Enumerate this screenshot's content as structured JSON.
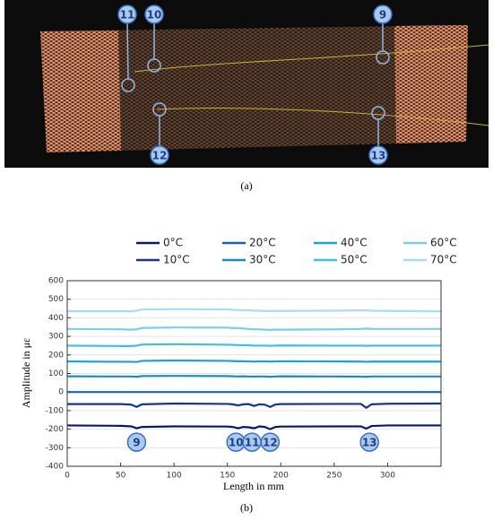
{
  "figure": {
    "panel_a_caption": "(a)",
    "panel_b_caption": "(b)",
    "photo_labels": [
      "11",
      "10",
      "9",
      "12",
      "13"
    ]
  },
  "chart_data": {
    "type": "line",
    "xlabel": "Length in mm",
    "ylabel": "Amplitude in με",
    "x": [
      0,
      50,
      60,
      65,
      70,
      100,
      150,
      155,
      160,
      165,
      170,
      175,
      180,
      185,
      190,
      195,
      200,
      250,
      275,
      280,
      285,
      300,
      350
    ],
    "xlim": [
      0,
      350
    ],
    "xticks": [
      0,
      50,
      100,
      150,
      200,
      250,
      300
    ],
    "ylim": [
      -400,
      600
    ],
    "yticks": [
      -400,
      -300,
      -200,
      -100,
      0,
      100,
      200,
      300,
      400,
      500,
      600
    ],
    "grid": true,
    "series": [
      {
        "name": "0°C",
        "color": "#0b1a66",
        "values": [
          -180,
          -182,
          -185,
          -195,
          -188,
          -185,
          -186,
          -188,
          -195,
          -188,
          -190,
          -195,
          -185,
          -188,
          -200,
          -188,
          -186,
          -185,
          -185,
          -197,
          -183,
          -180,
          -180
        ]
      },
      {
        "name": "10°C",
        "color": "#17358a",
        "values": [
          -65,
          -65,
          -68,
          -80,
          -66,
          -62,
          -64,
          -66,
          -72,
          -66,
          -65,
          -75,
          -66,
          -68,
          -80,
          -67,
          -65,
          -64,
          -64,
          -85,
          -66,
          -63,
          -62
        ]
      },
      {
        "name": "20°C",
        "color": "#1463b0",
        "values": [
          0,
          0,
          0,
          0,
          0,
          0,
          0,
          0,
          0,
          0,
          0,
          0,
          0,
          0,
          0,
          0,
          0,
          0,
          0,
          0,
          0,
          0,
          0
        ]
      },
      {
        "name": "30°C",
        "color": "#1a8bc6",
        "values": [
          85,
          84,
          84,
          82,
          86,
          87,
          86,
          85,
          84,
          85,
          84,
          83,
          84,
          84,
          82,
          84,
          85,
          84,
          83,
          82,
          84,
          84,
          84
        ]
      },
      {
        "name": "40°C",
        "color": "#1ba2d6",
        "values": [
          165,
          163,
          163,
          162,
          168,
          170,
          168,
          167,
          166,
          166,
          165,
          164,
          165,
          165,
          164,
          165,
          166,
          165,
          164,
          163,
          164,
          164,
          164
        ]
      },
      {
        "name": "50°C",
        "color": "#3cbfe0",
        "values": [
          250,
          248,
          248,
          250,
          256,
          258,
          255,
          254,
          253,
          252,
          252,
          250,
          250,
          250,
          249,
          250,
          251,
          250,
          250,
          249,
          250,
          250,
          250
        ]
      },
      {
        "name": "60°C",
        "color": "#7ccde6",
        "values": [
          340,
          338,
          336,
          338,
          345,
          348,
          347,
          345,
          344,
          342,
          340,
          338,
          338,
          336,
          335,
          336,
          336,
          338,
          340,
          342,
          340,
          340,
          340
        ]
      },
      {
        "name": "70°C",
        "color": "#a8ddf0",
        "values": [
          435,
          435,
          435,
          438,
          445,
          447,
          445,
          443,
          442,
          440,
          440,
          438,
          438,
          437,
          436,
          437,
          437,
          438,
          440,
          440,
          438,
          437,
          435
        ]
      }
    ],
    "annotations": [
      {
        "text": "9",
        "x": 65,
        "y": -270
      },
      {
        "text": "10",
        "x": 158,
        "y": -270
      },
      {
        "text": "11",
        "x": 173,
        "y": -270
      },
      {
        "text": "12",
        "x": 190,
        "y": -270
      },
      {
        "text": "13",
        "x": 283,
        "y": -270
      }
    ]
  }
}
